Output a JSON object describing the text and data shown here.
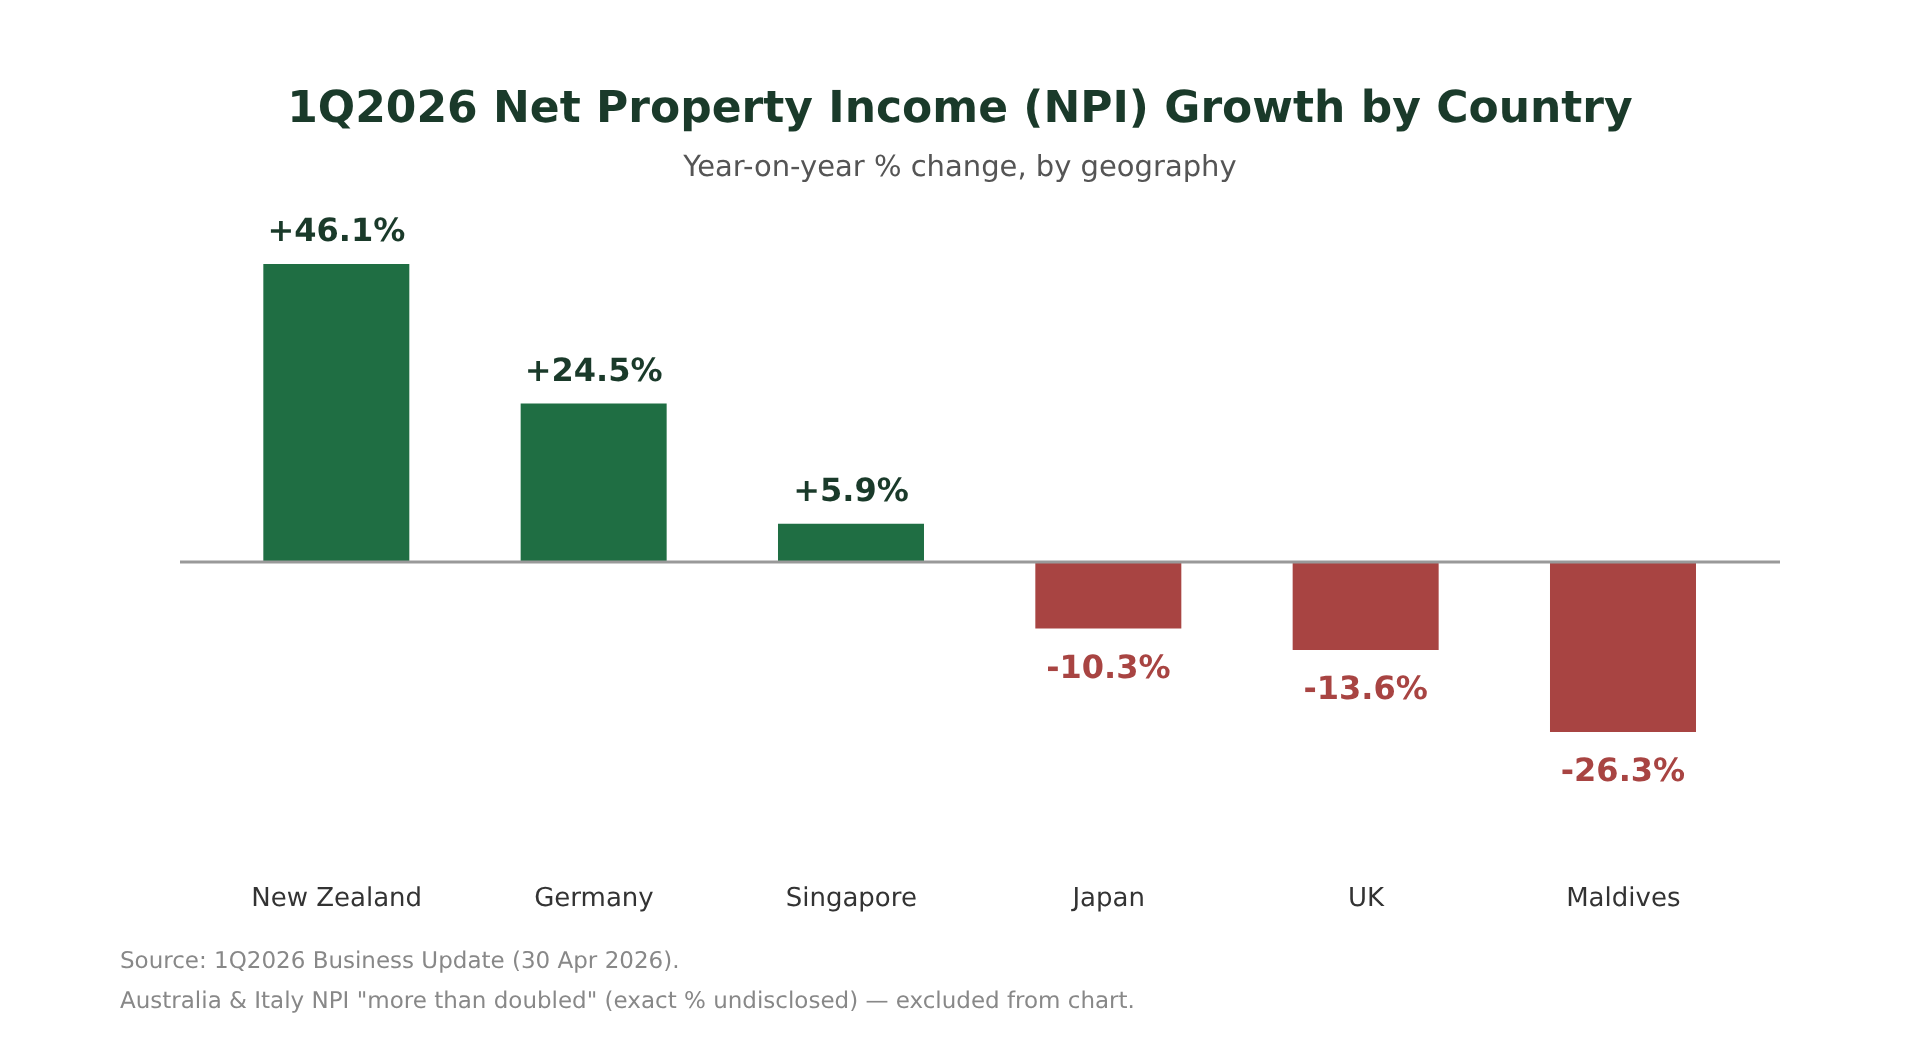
{
  "chart_data": {
    "type": "bar",
    "title": "1Q2026 Net Property Income (NPI) Growth by Country",
    "subtitle": "Year-on-year % change, by geography",
    "categories": [
      "New Zealand",
      "Germany",
      "Singapore",
      "Japan",
      "UK",
      "Maldives"
    ],
    "values": [
      46.1,
      24.5,
      5.9,
      -10.3,
      -13.6,
      -26.3
    ],
    "colors": [
      "#1f6e43",
      "#1f6e43",
      "#1f6e43",
      "#a84442",
      "#a84442",
      "#a84442"
    ],
    "value_labels": [
      "+46.1%",
      "+24.5%",
      "+5.9%",
      "-10.3%",
      "-13.6%",
      "-26.3%"
    ],
    "tick_labels": "x",
    "ref_lines": [
      {
        "axis": "y",
        "value": 0,
        "color": "#999999"
      }
    ],
    "annotations": [
      "Source: 1Q2026 Business Update (30 Apr 2026).",
      "Australia & Italy NPI \"more than doubled\" (exact % undisclosed) — excluded from chart."
    ]
  }
}
